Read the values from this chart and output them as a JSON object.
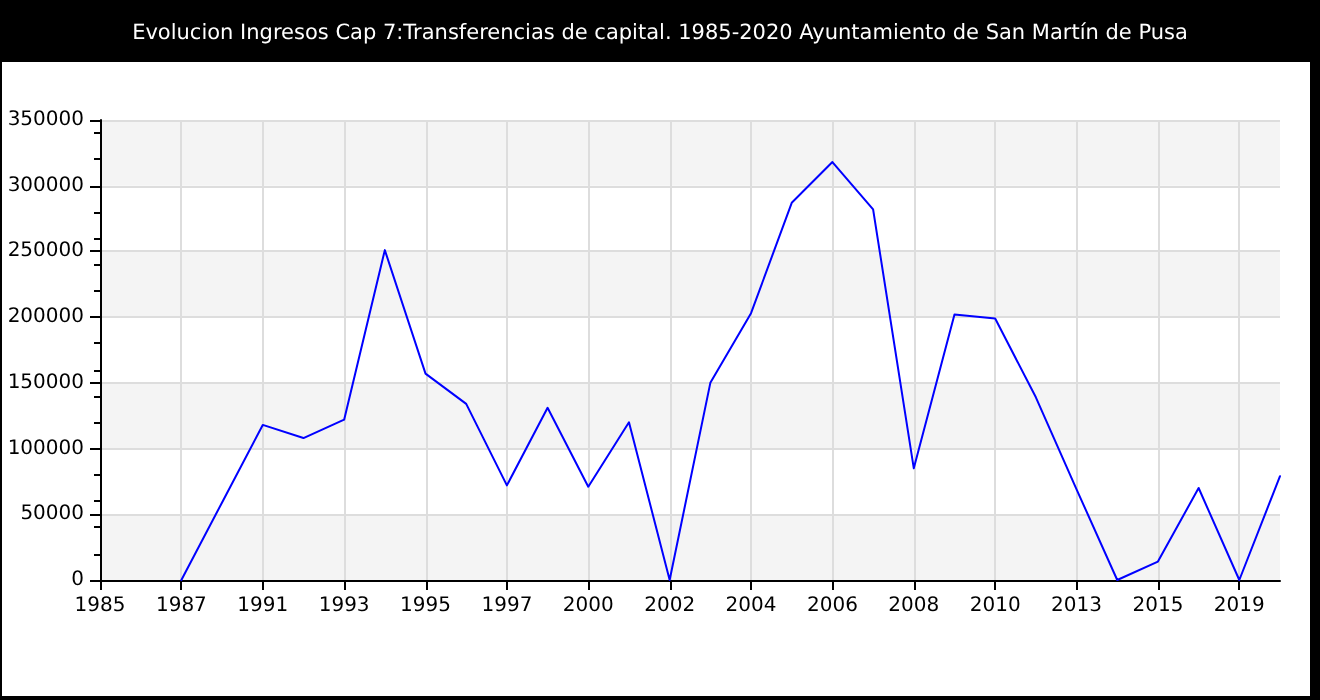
{
  "chart_data": {
    "type": "line",
    "title": "Evolucion Ingresos Cap 7:Transferencias de capital. 1985-2020 Ayuntamiento de San Martín de Pusa",
    "categories": [
      "1985",
      null,
      "1987",
      null,
      "1991",
      null,
      "1993",
      null,
      "1995",
      null,
      "1997",
      null,
      "2000",
      null,
      "2002",
      null,
      "2004",
      null,
      "2006",
      null,
      "2008",
      null,
      "2010",
      null,
      "2013",
      null,
      "2015",
      null,
      "2019",
      null
    ],
    "series": [
      {
        "color": "#0000ff",
        "values": [
          null,
          null,
          0,
          59000,
          118000,
          108000,
          122000,
          251000,
          157000,
          134000,
          72000,
          131000,
          71000,
          120000,
          0,
          150000,
          203000,
          287000,
          318000,
          282000,
          85000,
          202000,
          199000,
          139000,
          69000,
          0,
          14000,
          70000,
          0,
          79000
        ]
      }
    ],
    "ylim": [
      0,
      350000
    ],
    "yticks": [
      0,
      50000,
      100000,
      150000,
      200000,
      250000,
      300000,
      350000
    ],
    "grid": true,
    "marker": "none",
    "line_style": "solid"
  }
}
